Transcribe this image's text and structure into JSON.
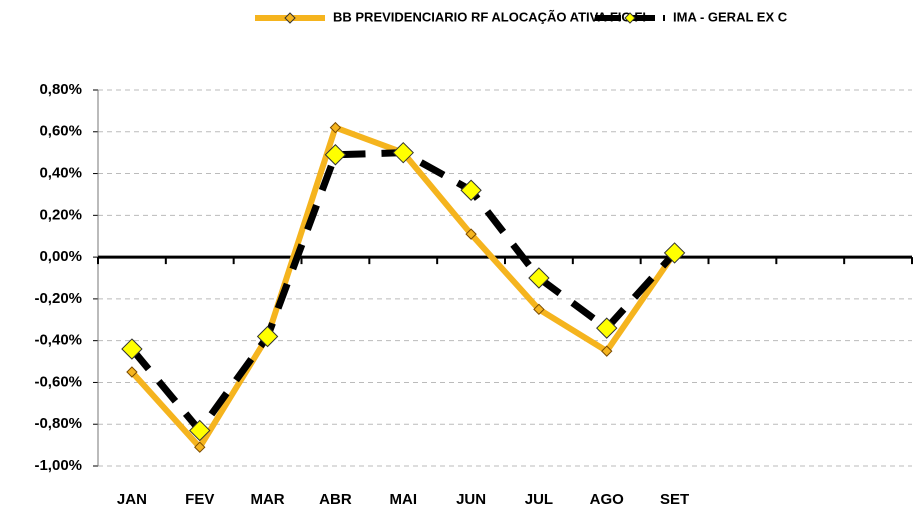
{
  "chart_data": {
    "type": "line",
    "categories": [
      "JAN",
      "FEV",
      "MAR",
      "ABR",
      "MAI",
      "JUN",
      "JUL",
      "AGO",
      "SET",
      null,
      null,
      null
    ],
    "series": [
      {
        "name": "BB PREVIDENCIARIO RF ALOCAÇÃO ATIVA FIC FI",
        "color": "#f5b41e",
        "marker_color": "#f5b41e",
        "dashed": false,
        "values": [
          -0.55,
          -0.91,
          -0.38,
          0.62,
          0.5,
          0.11,
          -0.25,
          -0.45,
          0.02,
          null,
          null,
          null
        ]
      },
      {
        "name": "IMA - GERAL EX C",
        "color": "#000000",
        "marker_color": "#ffff00",
        "dashed": true,
        "values": [
          -0.44,
          -0.83,
          -0.38,
          0.49,
          0.5,
          0.32,
          -0.1,
          -0.34,
          0.02,
          null,
          null,
          null
        ]
      }
    ],
    "ylim": [
      -1.0,
      0.8
    ],
    "yticks": [
      {
        "value": -1.0,
        "label": "-1,00%"
      },
      {
        "value": -0.8,
        "label": "-0,80%"
      },
      {
        "value": -0.6,
        "label": "-0,60%"
      },
      {
        "value": -0.4,
        "label": "-0,40%"
      },
      {
        "value": -0.2,
        "label": "-0,20%"
      },
      {
        "value": 0,
        "label": "0,00%"
      },
      {
        "value": 0.2,
        "label": "0,20%"
      },
      {
        "value": 0.4,
        "label": "0,40%"
      },
      {
        "value": 0.6,
        "label": "0,60%"
      },
      {
        "value": 0.8,
        "label": "0,80%"
      }
    ],
    "grid": true
  }
}
